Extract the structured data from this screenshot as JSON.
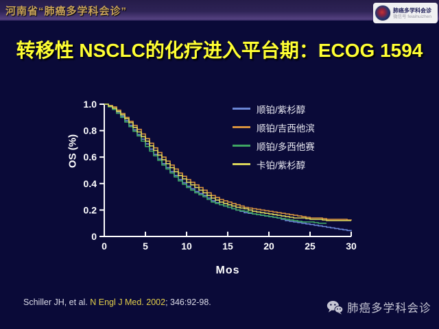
{
  "header": {
    "left_title": "河南省“肺癌多学科会诊”",
    "badge": {
      "title": "肺癌多学科会诊",
      "subtitle": "微信号 feiaihuizhen"
    }
  },
  "title": "转移性 NSCLC的化疗进入平台期：ECOG 1594",
  "chart_data": {
    "type": "line",
    "subtype": "kaplan-meier-step",
    "title": "",
    "xlabel": "Mos",
    "ylabel": "OS (%)",
    "xlim": [
      0,
      30
    ],
    "ylim": [
      0,
      1.0
    ],
    "xticks": [
      0,
      5,
      10,
      15,
      20,
      25,
      30
    ],
    "xtick_labels": [
      "0",
      "5",
      "10",
      "15",
      "20",
      "25",
      "30"
    ],
    "yticks": [
      0,
      0.2,
      0.4,
      0.6,
      0.8,
      1.0
    ],
    "ytick_labels": [
      "0",
      "0.2",
      "0.4",
      "0.6",
      "0.8",
      "1.0"
    ],
    "grid": false,
    "legend_position": "upper right",
    "x_start": 0,
    "x_months_step": 1,
    "series": [
      {
        "name": "顺铂/紫杉醇",
        "color": "#6b87d6",
        "values": [
          1.0,
          0.97,
          0.91,
          0.84,
          0.77,
          0.7,
          0.62,
          0.55,
          0.49,
          0.43,
          0.38,
          0.34,
          0.31,
          0.27,
          0.24,
          0.22,
          0.2,
          0.18,
          0.17,
          0.16,
          0.15,
          0.14,
          0.12,
          0.11,
          0.1,
          0.09,
          0.08,
          0.07,
          0.06,
          0.05,
          0.04
        ]
      },
      {
        "name": "顺铂/吉西他滨",
        "color": "#d6913e",
        "values": [
          1.0,
          0.98,
          0.93,
          0.87,
          0.81,
          0.74,
          0.67,
          0.6,
          0.54,
          0.48,
          0.43,
          0.39,
          0.35,
          0.31,
          0.28,
          0.26,
          0.24,
          0.22,
          0.21,
          0.2,
          0.19,
          0.18,
          0.17,
          0.16,
          0.15,
          0.14,
          0.14,
          0.13,
          0.13,
          0.13,
          0.12
        ]
      },
      {
        "name": "顺铂/多西他赛",
        "color": "#3fa763",
        "values": [
          1.0,
          0.96,
          0.9,
          0.83,
          0.76,
          0.68,
          0.61,
          0.54,
          0.48,
          0.42,
          0.37,
          0.33,
          0.3,
          0.26,
          0.24,
          0.22,
          0.2,
          0.19,
          0.17,
          0.16,
          0.15,
          0.14,
          0.13,
          0.12,
          0.11,
          0.11,
          0.1,
          0.1
        ]
      },
      {
        "name": "卡铂/紫杉醇",
        "color": "#d9d45a",
        "values": [
          1.0,
          0.97,
          0.92,
          0.86,
          0.79,
          0.72,
          0.65,
          0.58,
          0.52,
          0.46,
          0.41,
          0.37,
          0.33,
          0.29,
          0.26,
          0.24,
          0.22,
          0.21,
          0.19,
          0.18,
          0.17,
          0.16,
          0.15,
          0.14,
          0.14,
          0.13,
          0.13,
          0.12,
          0.12,
          0.12,
          0.12
        ]
      }
    ]
  },
  "citation": {
    "prefix": "Schiller JH, et al. ",
    "journal": "N Engl J Med. 2002",
    "suffix": "; 346:92-98."
  },
  "footer": {
    "wechat_label": "肺癌多学科会诊"
  },
  "colors": {
    "background": "#0a0a38",
    "title": "#ffff33",
    "header_text": "#c9a35a",
    "axis": "#ffffff",
    "citation_accent": "#e3cf4a"
  }
}
